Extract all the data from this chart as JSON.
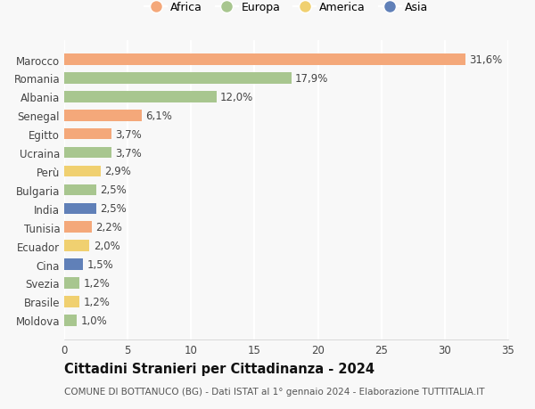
{
  "countries": [
    "Moldova",
    "Brasile",
    "Svezia",
    "Cina",
    "Ecuador",
    "Tunisia",
    "India",
    "Bulgaria",
    "Perù",
    "Ucraina",
    "Egitto",
    "Senegal",
    "Albania",
    "Romania",
    "Marocco"
  ],
  "values": [
    1.0,
    1.2,
    1.2,
    1.5,
    2.0,
    2.2,
    2.5,
    2.5,
    2.9,
    3.7,
    3.7,
    6.1,
    12.0,
    17.9,
    31.6
  ],
  "labels": [
    "1,0%",
    "1,2%",
    "1,2%",
    "1,5%",
    "2,0%",
    "2,2%",
    "2,5%",
    "2,5%",
    "2,9%",
    "3,7%",
    "3,7%",
    "6,1%",
    "12,0%",
    "17,9%",
    "31,6%"
  ],
  "continents": [
    "Europa",
    "America",
    "Europa",
    "Asia",
    "America",
    "Africa",
    "Asia",
    "Europa",
    "America",
    "Europa",
    "Africa",
    "Africa",
    "Europa",
    "Europa",
    "Africa"
  ],
  "colors": {
    "Africa": "#F4A87A",
    "Europa": "#A8C68F",
    "America": "#F0D070",
    "Asia": "#6080B8"
  },
  "legend_order": [
    "Africa",
    "Europa",
    "America",
    "Asia"
  ],
  "xlim": [
    0,
    35
  ],
  "xticks": [
    0,
    5,
    10,
    15,
    20,
    25,
    30,
    35
  ],
  "title": "Cittadini Stranieri per Cittadinanza - 2024",
  "subtitle": "COMUNE DI BOTTANUCO (BG) - Dati ISTAT al 1° gennaio 2024 - Elaborazione TUTTITALIA.IT",
  "background_color": "#f8f8f8",
  "grid_color": "#ffffff",
  "bar_height": 0.6,
  "label_fontsize": 8.5,
  "ytick_fontsize": 8.5,
  "xtick_fontsize": 8.5,
  "title_fontsize": 10.5,
  "subtitle_fontsize": 7.5
}
